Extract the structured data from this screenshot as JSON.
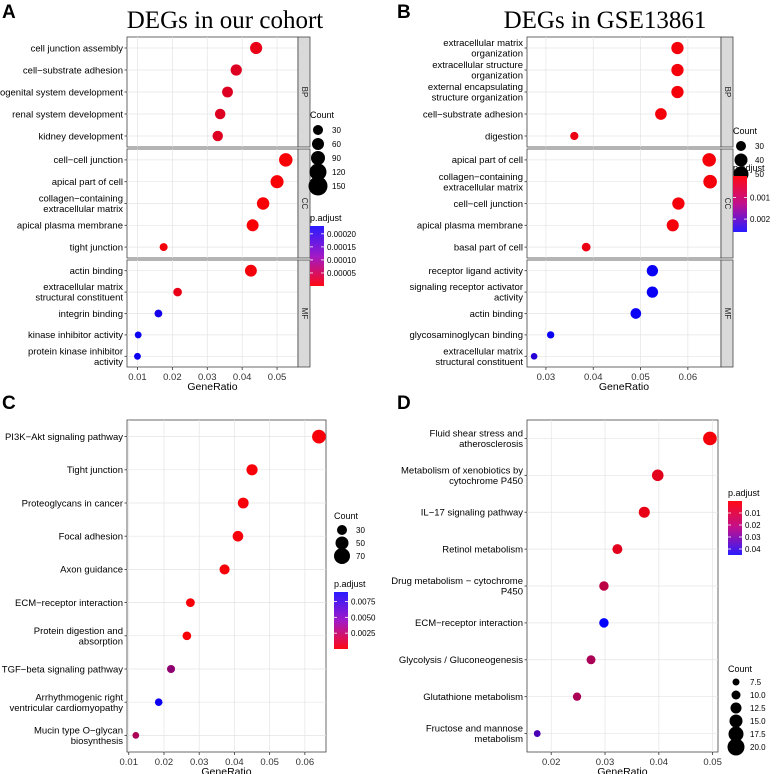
{
  "chart_data": [
    {
      "id": "A",
      "panel_label": "A",
      "title": "DEGs in our cohort",
      "type": "scatter",
      "xlabel": "GeneRatio",
      "xlim": [
        0.007,
        0.056
      ],
      "xticks": [
        0.01,
        0.02,
        0.03,
        0.04,
        0.05
      ],
      "xtick_labels": [
        "0.01",
        "0.02",
        "0.03",
        "0.04",
        "0.05"
      ],
      "facets": [
        {
          "strip": "BP",
          "points": [
            {
              "label": "cell junction assembly",
              "x": 0.044,
              "p": 2e-05
            },
            {
              "label": "cell−substrate adhesion",
              "x": 0.0383,
              "p": 3e-05
            },
            {
              "label": "urogenital system development",
              "x": 0.0358,
              "p": 3e-05
            },
            {
              "label": "renal system development",
              "x": 0.0337,
              "p": 3e-05
            },
            {
              "label": "kidney development",
              "x": 0.033,
              "p": 3e-05
            }
          ]
        },
        {
          "strip": "CC",
          "points": [
            {
              "label": "cell−cell junction",
              "x": 0.0525,
              "p": 5e-06
            },
            {
              "label": "apical part of cell",
              "x": 0.05,
              "p": 5e-06
            },
            {
              "label": "collagen−containing\nextracellular matrix",
              "x": 0.046,
              "p": 5e-06
            },
            {
              "label": "apical plasma membrane",
              "x": 0.043,
              "p": 5e-06
            },
            {
              "label": "tight junction",
              "x": 0.0175,
              "p": 1e-05
            }
          ]
        },
        {
          "strip": "MF",
          "points": [
            {
              "label": "actin binding",
              "x": 0.0425,
              "p": 1e-05
            },
            {
              "label": "extracellular matrix\nstructural constituent",
              "x": 0.0215,
              "p": 2e-05
            },
            {
              "label": "integrin binding",
              "x": 0.016,
              "p": 0.00021
            },
            {
              "label": "kinase inhibitor activity",
              "x": 0.0102,
              "p": 0.00022
            },
            {
              "label": "protein kinase inhibitor\nactivity",
              "x": 0.01,
              "p": 0.00022
            }
          ]
        }
      ],
      "legend_count": {
        "title": "Count",
        "breaks": [
          30,
          60,
          90,
          120,
          150
        ]
      },
      "legend_padj": {
        "title": "p.adjust",
        "breaks": [
          0.0002,
          0.00015,
          0.0001,
          5e-05
        ],
        "labels": [
          "0.00020",
          "0.00015",
          "0.00010",
          "0.00005"
        ],
        "min": 0,
        "max": 0.00023,
        "low_color": "#ff0000",
        "high_color": "#0000ff"
      }
    },
    {
      "id": "B",
      "panel_label": "B",
      "title": "DEGs in GSE13861",
      "type": "scatter",
      "xlabel": "GeneRatio",
      "xlim": [
        0.026,
        0.067
      ],
      "xticks": [
        0.03,
        0.04,
        0.05,
        0.06
      ],
      "xtick_labels": [
        "0.03",
        "0.04",
        "0.05",
        "0.06"
      ],
      "facets": [
        {
          "strip": "BP",
          "points": [
            {
              "label": "extracellular matrix\norganization",
              "x": 0.0578,
              "p": 0.0001
            },
            {
              "label": "extracellular structure\norganization",
              "x": 0.0578,
              "p": 0.0001
            },
            {
              "label": "external encapsulating\nstructure organization",
              "x": 0.0578,
              "p": 0.0001
            },
            {
              "label": "cell−substrate adhesion",
              "x": 0.0543,
              "p": 0.0001
            },
            {
              "label": "digestion",
              "x": 0.036,
              "p": 0.0002
            }
          ]
        },
        {
          "strip": "CC",
          "points": [
            {
              "label": "apical part of cell",
              "x": 0.0645,
              "p": 0.0001
            },
            {
              "label": "collagen−containing\nextracellular matrix",
              "x": 0.0647,
              "p": 0.0001
            },
            {
              "label": "cell−cell junction",
              "x": 0.058,
              "p": 0.0001
            },
            {
              "label": "apical plasma membrane",
              "x": 0.0568,
              "p": 0.0001
            },
            {
              "label": "basal part of cell",
              "x": 0.0385,
              "p": 0.0002
            }
          ]
        },
        {
          "strip": "MF",
          "points": [
            {
              "label": "receptor ligand activity",
              "x": 0.0525,
              "p": 0.0025
            },
            {
              "label": "signaling receptor activator\nactivity",
              "x": 0.0525,
              "p": 0.0025
            },
            {
              "label": "actin binding",
              "x": 0.049,
              "p": 0.0025
            },
            {
              "label": "glycosaminoglycan binding",
              "x": 0.031,
              "p": 0.0025
            },
            {
              "label": "extracellular matrix\nstructural constituent",
              "x": 0.0275,
              "p": 0.0022
            }
          ]
        }
      ],
      "legend_count": {
        "title": "Count",
        "breaks": [
          30,
          40,
          50
        ]
      },
      "legend_padj": {
        "title": "p.adjust",
        "breaks": [
          0.001,
          0.002
        ],
        "labels": [
          "0.001",
          "0.002"
        ],
        "min": 0,
        "max": 0.0026,
        "low_color": "#ff0000",
        "high_color": "#0000ff"
      }
    },
    {
      "id": "C",
      "panel_label": "C",
      "title": "",
      "type": "scatter",
      "xlabel": "GeneRatio",
      "xlim": [
        0.0095,
        0.066
      ],
      "xticks": [
        0.01,
        0.02,
        0.03,
        0.04,
        0.05,
        0.06
      ],
      "xtick_labels": [
        "0.01",
        "0.02",
        "0.03",
        "0.04",
        "0.05",
        "0.06"
      ],
      "facets": [
        {
          "strip": "",
          "points": [
            {
              "label": "PI3K−Akt signaling pathway",
              "x": 0.064,
              "p": 0.0003
            },
            {
              "label": "Tight junction",
              "x": 0.045,
              "p": 0.0003
            },
            {
              "label": "Proteoglycans in cancer",
              "x": 0.0425,
              "p": 0.0003
            },
            {
              "label": "Focal adhesion",
              "x": 0.041,
              "p": 0.0003
            },
            {
              "label": "Axon guidance",
              "x": 0.0372,
              "p": 0.0003
            },
            {
              "label": "ECM−receptor interaction",
              "x": 0.0275,
              "p": 0.0002
            },
            {
              "label": "Protein digestion and\nabsorption",
              "x": 0.0265,
              "p": 0.0002
            },
            {
              "label": "TGF−beta signaling pathway",
              "x": 0.022,
              "p": 0.004
            },
            {
              "label": "Arrhythmogenic right\nventricular cardiomyopathy",
              "x": 0.0185,
              "p": 0.0085
            },
            {
              "label": "Mucin type O−glycan\nbiosynthesis",
              "x": 0.012,
              "p": 0.003
            }
          ]
        }
      ],
      "legend_count": {
        "title": "Count",
        "breaks": [
          30,
          50,
          70
        ]
      },
      "legend_padj": {
        "title": "p.adjust",
        "breaks": [
          0.0075,
          0.005,
          0.0025
        ],
        "labels": [
          "0.0075",
          "0.0050",
          "0.0025"
        ],
        "min": 0,
        "max": 0.009,
        "low_color": "#ff0000",
        "high_color": "#0000ff"
      }
    },
    {
      "id": "D",
      "panel_label": "D",
      "title": "",
      "type": "scatter",
      "xlabel": "GeneRatio",
      "xlim": [
        0.0155,
        0.051
      ],
      "xticks": [
        0.02,
        0.03,
        0.04,
        0.05
      ],
      "xtick_labels": [
        "0.02",
        "0.03",
        "0.04",
        "0.05"
      ],
      "facets": [
        {
          "strip": "",
          "points": [
            {
              "label": "Fluid shear stress and\natherosclerosis",
              "x": 0.0495,
              "p": 0.002
            },
            {
              "label": "Metabolism of xenobiotics by\ncytochrome P450",
              "x": 0.0398,
              "p": 0.005
            },
            {
              "label": "IL−17 signaling pathway",
              "x": 0.0373,
              "p": 0.004
            },
            {
              "label": "Retinol metabolism",
              "x": 0.0323,
              "p": 0.005
            },
            {
              "label": "Drug metabolism − cytochrome\nP450",
              "x": 0.0298,
              "p": 0.012
            },
            {
              "label": "ECM−receptor interaction",
              "x": 0.0298,
              "p": 0.045
            },
            {
              "label": "Glycolysis / Gluconeogenesis",
              "x": 0.0274,
              "p": 0.015
            },
            {
              "label": "Glutathione metabolism",
              "x": 0.0248,
              "p": 0.015
            },
            {
              "label": "Fructose and mannose\nmetabolism",
              "x": 0.0174,
              "p": 0.032
            }
          ]
        }
      ],
      "legend_count": {
        "title": "Count",
        "breaks": [
          7.5,
          10.0,
          12.5,
          15.0,
          17.5,
          20.0
        ],
        "labels": [
          "7.5",
          "10.0",
          "12.5",
          "15.0",
          "17.5",
          "20.0"
        ]
      },
      "legend_padj": {
        "title": "p.adjust",
        "breaks": [
          0.01,
          0.02,
          0.03,
          0.04
        ],
        "labels": [
          "0.01",
          "0.02",
          "0.03",
          "0.04"
        ],
        "min": 0,
        "max": 0.045,
        "low_color": "#ff0000",
        "high_color": "#0000ff"
      }
    }
  ]
}
